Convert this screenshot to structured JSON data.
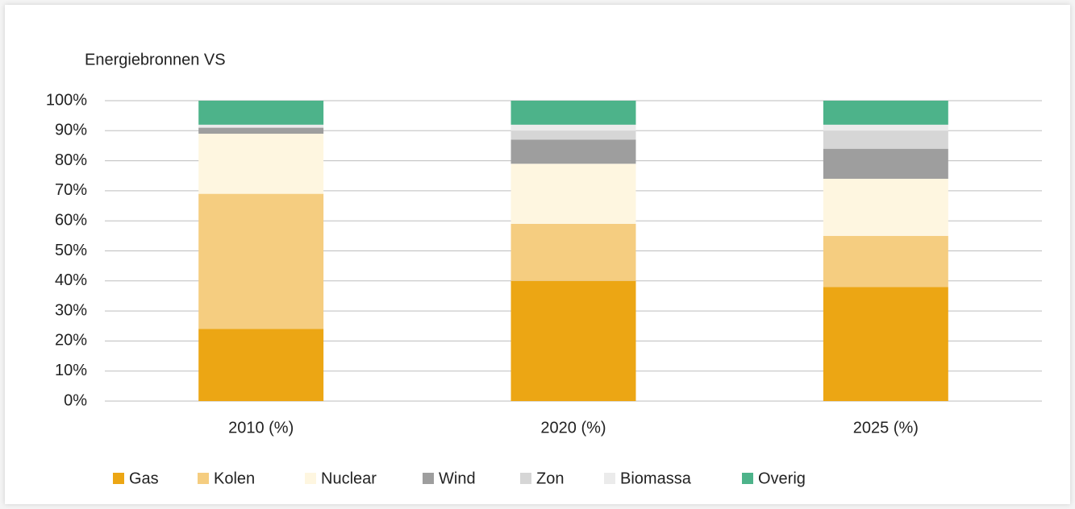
{
  "chart_data": {
    "type": "stacked_bar",
    "title": "Energiebronnen VS",
    "categories": [
      "2010 (%)",
      "2020 (%)",
      "2025 (%)"
    ],
    "series": [
      {
        "name": "Gas",
        "color": "#eca614",
        "values": [
          24,
          40,
          38
        ]
      },
      {
        "name": "Kolen",
        "color": "#f5cd80",
        "values": [
          45,
          19,
          17
        ]
      },
      {
        "name": "Nuclear",
        "color": "#fef6e0",
        "values": [
          20,
          20,
          19
        ]
      },
      {
        "name": "Wind",
        "color": "#9e9e9e",
        "values": [
          2,
          8,
          10
        ]
      },
      {
        "name": "Zon",
        "color": "#d6d6d6",
        "values": [
          0,
          3,
          6
        ]
      },
      {
        "name": "Biomassa",
        "color": "#ebebeb",
        "values": [
          1,
          2,
          2
        ]
      },
      {
        "name": "Overig",
        "color": "#4db38a",
        "values": [
          8,
          8,
          8
        ]
      }
    ],
    "ylim": [
      0,
      100
    ],
    "yticks": [
      {
        "value": 0,
        "label": "0%"
      },
      {
        "value": 10,
        "label": "10%"
      },
      {
        "value": 20,
        "label": "20%"
      },
      {
        "value": 30,
        "label": "30%"
      },
      {
        "value": 40,
        "label": "40%"
      },
      {
        "value": 50,
        "label": "50%"
      },
      {
        "value": 60,
        "label": "60%"
      },
      {
        "value": 70,
        "label": "70%"
      },
      {
        "value": 80,
        "label": "80%"
      },
      {
        "value": 90,
        "label": "90%"
      },
      {
        "value": 100,
        "label": "100%"
      }
    ],
    "grid": true,
    "legend": "bottom"
  }
}
